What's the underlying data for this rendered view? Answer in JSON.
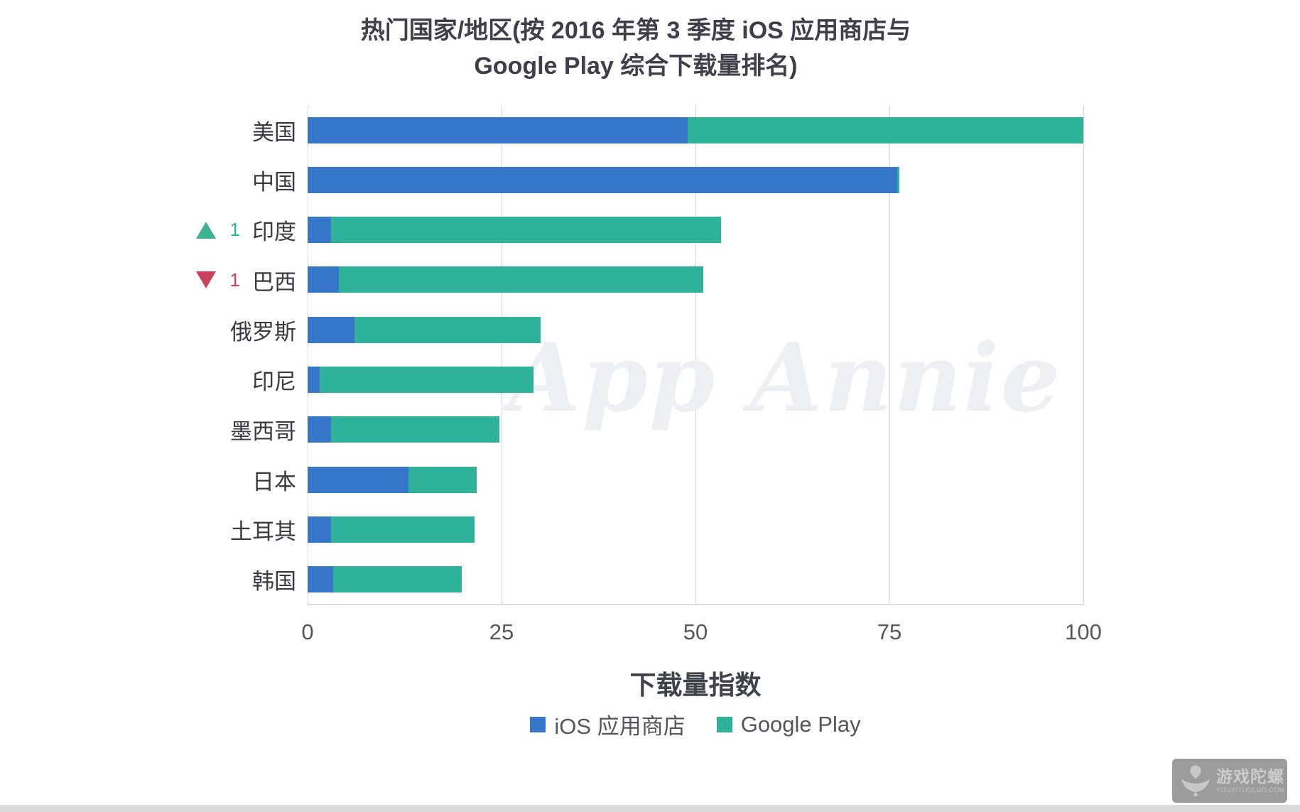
{
  "title": {
    "line1": "热门国家/地区(按 2016 年第 3 季度 iOS 应用商店与",
    "line2": "Google Play 综合下载量排名)"
  },
  "chart_data": {
    "type": "bar",
    "orientation": "horizontal",
    "stacked": true,
    "categories": [
      "美国",
      "中国",
      "印度",
      "巴西",
      "俄罗斯",
      "印尼",
      "墨西哥",
      "日本",
      "土耳其",
      "韩国"
    ],
    "rank_changes": [
      null,
      null,
      {
        "direction": "up",
        "amount": "1"
      },
      {
        "direction": "down",
        "amount": "1"
      },
      null,
      null,
      null,
      null,
      null,
      null
    ],
    "series": [
      {
        "name": "iOS 应用商店",
        "color": "#3777c9",
        "values": [
          49,
          76,
          3,
          4,
          6,
          1.6,
          3,
          13,
          3,
          3.3
        ]
      },
      {
        "name": "Google Play",
        "color": "#2eb39a",
        "values": [
          51,
          0.3,
          50.3,
          47,
          24,
          27.5,
          21.7,
          8.8,
          18.5,
          16.6
        ]
      }
    ],
    "xlabel": "下载量指数",
    "x_ticks": [
      0,
      25,
      50,
      75,
      100
    ],
    "xlim": [
      0,
      100
    ],
    "grid": "vertical",
    "legend_position": "bottom"
  },
  "watermark": "App Annie",
  "colors": {
    "ios_blue": "#3777c9",
    "google_play_green": "#2eb39a",
    "rank_up_green": "#3db491",
    "rank_down_red": "#c8425a",
    "gridline": "#d7d7d7",
    "title_text": "#3d4049",
    "tick_text": "#55575c",
    "watermark_text": "#edf0f2"
  },
  "logo": {
    "name": "游戏陀螺",
    "domain": "YOUXITUOLUO.COM"
  }
}
